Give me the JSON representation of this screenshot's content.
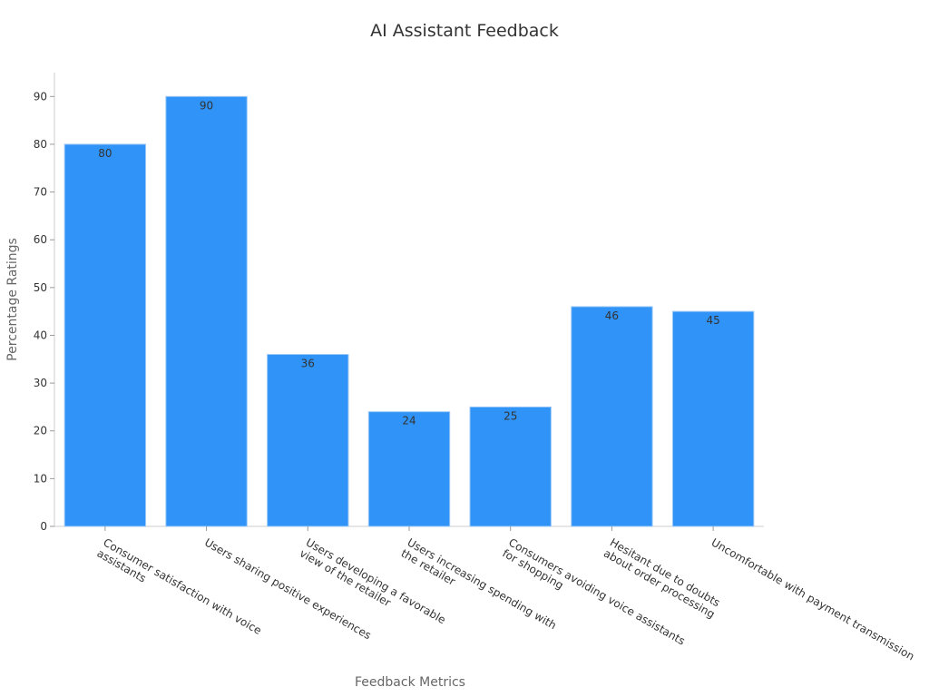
{
  "chart_data": {
    "type": "bar",
    "title": "AI Assistant Feedback",
    "x_label": "Feedback Metrics",
    "y_label": "Percentage Ratings",
    "categories": [
      "Consumer satisfaction with voice\nassistants",
      "Users sharing positive experiences",
      "Users developing a favorable\nview of the retailer",
      "Users increasing spending with\nthe retailer",
      "Consumers avoiding voice assistants\nfor shopping",
      "Hesitant due to doubts\nabout order processing",
      "Uncomfortable with payment transmission"
    ],
    "values": [
      80,
      90,
      36,
      24,
      25,
      46,
      45
    ],
    "color": "#2f93f7",
    "ylim": [
      0,
      95
    ],
    "yticks": [
      0,
      10,
      20,
      30,
      40,
      50,
      60,
      70,
      80,
      90
    ]
  }
}
